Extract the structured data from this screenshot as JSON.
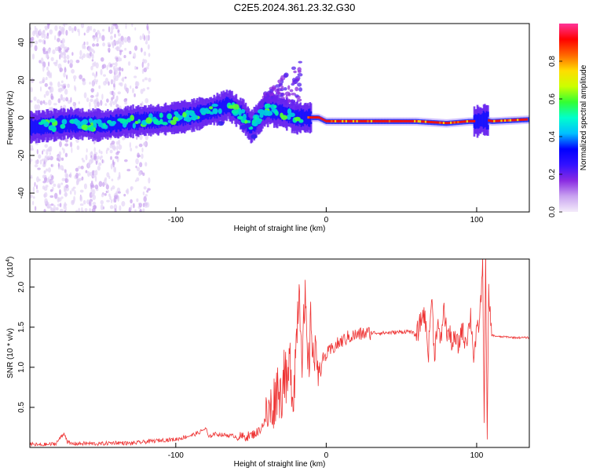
{
  "title": "C2E5.2024.361.23.32.G30",
  "chart_data": [
    {
      "type": "heatmap",
      "xlabel": "Height of straight line (km)",
      "ylabel": "Frequency (Hz)",
      "xlim": [
        -197,
        135
      ],
      "ylim": [
        -50,
        50
      ],
      "xticks": [
        -100,
        0,
        100
      ],
      "xtick_labels": [
        "-100",
        "0",
        "100"
      ],
      "yticks": [
        -40,
        -20,
        0,
        20,
        40
      ],
      "ytick_labels": [
        "-40",
        "-20",
        "0",
        "20",
        "40"
      ],
      "colorbar": {
        "label": "Normalized spectral amplitude",
        "range": [
          0,
          1
        ],
        "ticks": [
          0.0,
          0.2,
          0.4,
          0.6,
          0.8
        ],
        "tick_labels": [
          "0.0",
          "0.2",
          "0.4",
          "0.6",
          "0.8"
        ],
        "colors": [
          "#f4ecfa",
          "#c9a3f0",
          "#8a2be2",
          "#3311ff",
          "#0000ff",
          "#00bfff",
          "#00ffcc",
          "#33ff33",
          "#ccff00",
          "#ffdd00",
          "#ff6600",
          "#ff0000",
          "#ff3399"
        ]
      },
      "ridge": {
        "x": [
          -195,
          -170,
          -150,
          -130,
          -110,
          -90,
          -80,
          -70,
          -65,
          -55,
          -50,
          -40,
          -30,
          -20,
          -12,
          -5,
          0,
          20,
          50,
          60,
          80,
          95,
          100,
          105,
          110,
          135
        ],
        "y": [
          -5,
          -3,
          -4,
          -2,
          -1,
          1,
          3,
          5,
          7,
          1,
          -5,
          4,
          3,
          0,
          0,
          0,
          -2,
          -2,
          -2,
          -2,
          -3,
          -2,
          -2,
          -1,
          -2,
          -1
        ]
      },
      "grid": false
    },
    {
      "type": "line",
      "xlabel": "Height of straight line (km)",
      "ylabel": "SNR (10 * v/v)",
      "y_multiplier_label": "(x10",
      "y_multiplier_exp": "4",
      "xlim": [
        -197,
        135
      ],
      "ylim": [
        0,
        23500
      ],
      "xticks": [
        -100,
        0,
        100
      ],
      "xtick_labels": [
        "-100",
        "0",
        "100"
      ],
      "yticks": [
        5000,
        10000,
        15000,
        20000
      ],
      "ytick_labels": [
        "0.5",
        "1.0",
        "1.5",
        "2.0"
      ],
      "color": "#ee3333",
      "series": [
        {
          "x": [
            -197,
            -190,
            -180,
            -174,
            -172,
            -170,
            -160,
            -150,
            -140,
            -130,
            -120,
            -110,
            -100,
            -90,
            -85,
            -80,
            -78,
            -75,
            -70,
            -65,
            -60,
            -55,
            -50,
            -45,
            -40,
            -35,
            -32,
            -30,
            -28,
            -26,
            -24,
            -22,
            -20,
            -18,
            -16,
            -14,
            -12,
            -10,
            -8,
            -6,
            -4,
            -2,
            0,
            5,
            10,
            15,
            20,
            25,
            30,
            40,
            50,
            55,
            60,
            65,
            68,
            70,
            72,
            74,
            76,
            78,
            80,
            82,
            84,
            86,
            88,
            90,
            92,
            94,
            96,
            98,
            100,
            102,
            104,
            105,
            106,
            107,
            108,
            110,
            115,
            120,
            125,
            130,
            135
          ],
          "y": [
            400,
            300,
            450,
            1800,
            700,
            450,
            500,
            450,
            600,
            500,
            700,
            900,
            1000,
            1500,
            1800,
            2400,
            1200,
            1700,
            1600,
            1500,
            1400,
            1300,
            1500,
            2000,
            3500,
            5500,
            8000,
            6000,
            10000,
            7000,
            11000,
            6000,
            13000,
            20500,
            12000,
            17500,
            9000,
            16000,
            10500,
            11500,
            9500,
            11000,
            11500,
            12500,
            13200,
            13800,
            14000,
            14200,
            14300,
            14300,
            14400,
            14500,
            14000,
            17000,
            12000,
            19000,
            11500,
            16000,
            12500,
            17500,
            14500,
            14000,
            13000,
            13500,
            12500,
            15000,
            13500,
            14000,
            16500,
            11500,
            14000,
            16000,
            22500,
            4000,
            23500,
            600,
            19000,
            14000,
            13800,
            13800,
            13700,
            13700,
            13700
          ]
        }
      ],
      "grid": false
    }
  ]
}
